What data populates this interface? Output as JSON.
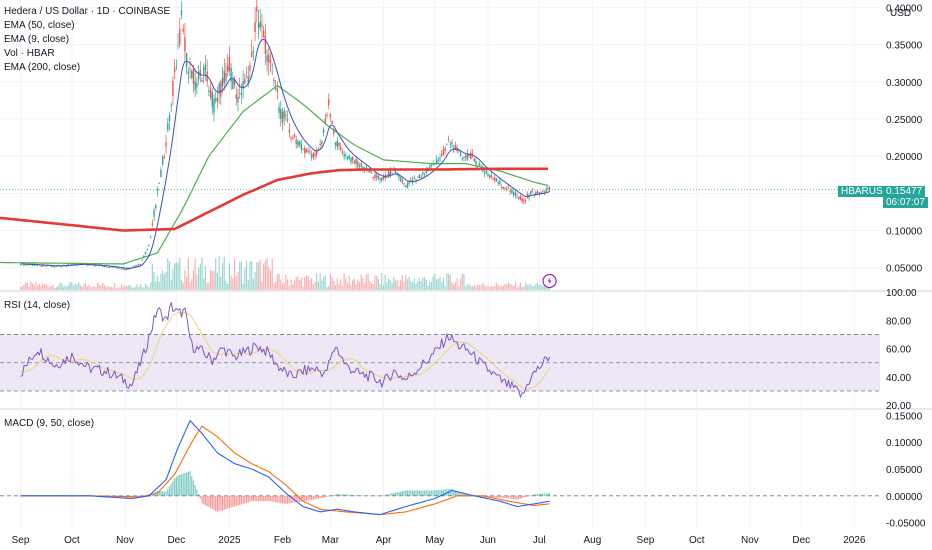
{
  "header": {
    "title": "Hedera / US Dollar · 1D · COINBASE",
    "currency": "USD",
    "indicators": [
      "EMA (50, close)",
      "EMA (9, close)",
      "Vol · HBAR",
      "EMA (200, close)"
    ]
  },
  "symbol_tag": {
    "symbol": "HBARUSD",
    "price": "0.15477",
    "countdown": "06:07:07"
  },
  "chart_data": [
    {
      "type": "candlestick",
      "title": "Hedera / US Dollar · 1D · COINBASE",
      "ylim": [
        0.02,
        0.41
      ],
      "y_ticks": [
        "0.40000",
        "0.35000",
        "0.30000",
        "0.25000",
        "0.20000",
        "0.15000",
        "0.10000",
        "0.05000"
      ],
      "y_tick_values": [
        0.4,
        0.35,
        0.3,
        0.25,
        0.2,
        0.15,
        0.1,
        0.05
      ],
      "x_labels": [
        "Sep",
        "Oct",
        "Nov",
        "Dec",
        "2025",
        "Feb",
        "Mar",
        "Apr",
        "May",
        "Jun",
        "Jul",
        "Aug",
        "Sep",
        "Oct",
        "Nov",
        "Dec",
        "2026"
      ],
      "x_label_days": [
        0,
        30,
        61,
        91,
        122,
        153,
        181,
        212,
        242,
        273,
        303,
        334,
        365,
        395,
        426,
        456,
        487
      ],
      "x_range_days": [
        -12,
        502
      ],
      "last_day": 309,
      "price_keypoints": [
        [
          0,
          0.055
        ],
        [
          20,
          0.052
        ],
        [
          35,
          0.055
        ],
        [
          50,
          0.052
        ],
        [
          62,
          0.048
        ],
        [
          70,
          0.055
        ],
        [
          75,
          0.08
        ],
        [
          80,
          0.15
        ],
        [
          87,
          0.25
        ],
        [
          91,
          0.33
        ],
        [
          94,
          0.38
        ],
        [
          97,
          0.33
        ],
        [
          102,
          0.3
        ],
        [
          108,
          0.31
        ],
        [
          113,
          0.27
        ],
        [
          117,
          0.29
        ],
        [
          122,
          0.32
        ],
        [
          127,
          0.28
        ],
        [
          132,
          0.3
        ],
        [
          135,
          0.33
        ],
        [
          138,
          0.39
        ],
        [
          142,
          0.36
        ],
        [
          147,
          0.31
        ],
        [
          152,
          0.26
        ],
        [
          158,
          0.23
        ],
        [
          165,
          0.21
        ],
        [
          172,
          0.2
        ],
        [
          176,
          0.22
        ],
        [
          180,
          0.27
        ],
        [
          184,
          0.22
        ],
        [
          190,
          0.2
        ],
        [
          197,
          0.19
        ],
        [
          203,
          0.18
        ],
        [
          208,
          0.17
        ],
        [
          212,
          0.17
        ],
        [
          218,
          0.18
        ],
        [
          225,
          0.16
        ],
        [
          232,
          0.17
        ],
        [
          238,
          0.18
        ],
        [
          242,
          0.19
        ],
        [
          246,
          0.2
        ],
        [
          250,
          0.22
        ],
        [
          254,
          0.21
        ],
        [
          258,
          0.2
        ],
        [
          264,
          0.2
        ],
        [
          270,
          0.18
        ],
        [
          276,
          0.17
        ],
        [
          282,
          0.16
        ],
        [
          288,
          0.15
        ],
        [
          294,
          0.14
        ],
        [
          298,
          0.15
        ],
        [
          303,
          0.15
        ],
        [
          309,
          0.155
        ]
      ],
      "ema200": [
        [
          -12,
          0.117
        ],
        [
          60,
          0.1
        ],
        [
          90,
          0.102
        ],
        [
          110,
          0.125
        ],
        [
          130,
          0.148
        ],
        [
          150,
          0.168
        ],
        [
          170,
          0.177
        ],
        [
          185,
          0.181
        ],
        [
          200,
          0.182
        ],
        [
          240,
          0.182
        ],
        [
          280,
          0.183
        ],
        [
          309,
          0.183
        ]
      ],
      "ema50_keypoints": [
        [
          -12,
          0.057
        ],
        [
          60,
          0.055
        ],
        [
          80,
          0.07
        ],
        [
          95,
          0.13
        ],
        [
          110,
          0.2
        ],
        [
          130,
          0.26
        ],
        [
          150,
          0.295
        ],
        [
          165,
          0.27
        ],
        [
          180,
          0.24
        ],
        [
          195,
          0.215
        ],
        [
          212,
          0.195
        ],
        [
          240,
          0.19
        ],
        [
          260,
          0.19
        ],
        [
          280,
          0.18
        ],
        [
          300,
          0.165
        ],
        [
          309,
          0.16
        ]
      ],
      "current_price": 0.15477
    },
    {
      "type": "line",
      "title": "RSI (14, close)",
      "ylim": [
        18,
        100
      ],
      "y_ticks": [
        "100.00",
        "80.00",
        "60.00",
        "40.00",
        "20.00"
      ],
      "y_tick_values": [
        100,
        80,
        60,
        40,
        20
      ],
      "band": [
        30,
        70
      ],
      "midline": 50,
      "rsi_keypoints": [
        [
          -12,
          45
        ],
        [
          0,
          42
        ],
        [
          10,
          60
        ],
        [
          20,
          48
        ],
        [
          30,
          55
        ],
        [
          40,
          46
        ],
        [
          50,
          44
        ],
        [
          60,
          38
        ],
        [
          65,
          34
        ],
        [
          72,
          56
        ],
        [
          80,
          88
        ],
        [
          85,
          80
        ],
        [
          88,
          90
        ],
        [
          92,
          85
        ],
        [
          96,
          86
        ],
        [
          100,
          62
        ],
        [
          106,
          58
        ],
        [
          112,
          52
        ],
        [
          118,
          60
        ],
        [
          125,
          54
        ],
        [
          132,
          58
        ],
        [
          138,
          62
        ],
        [
          145,
          57
        ],
        [
          150,
          48
        ],
        [
          158,
          40
        ],
        [
          165,
          44
        ],
        [
          172,
          46
        ],
        [
          178,
          42
        ],
        [
          184,
          62
        ],
        [
          190,
          48
        ],
        [
          198,
          42
        ],
        [
          205,
          40
        ],
        [
          212,
          36
        ],
        [
          218,
          44
        ],
        [
          225,
          38
        ],
        [
          232,
          46
        ],
        [
          238,
          52
        ],
        [
          244,
          60
        ],
        [
          250,
          69
        ],
        [
          256,
          62
        ],
        [
          262,
          58
        ],
        [
          270,
          48
        ],
        [
          276,
          42
        ],
        [
          282,
          36
        ],
        [
          288,
          32
        ],
        [
          293,
          26
        ],
        [
          298,
          40
        ],
        [
          304,
          48
        ],
        [
          309,
          55
        ]
      ]
    },
    {
      "type": "line",
      "title": "MACD (9, 50, close)",
      "ylim": [
        -0.06,
        0.16
      ],
      "y_ticks": [
        "0.15000",
        "0.10000",
        "0.05000",
        "0.00000",
        "-0.05000"
      ],
      "y_tick_values": [
        0.15,
        0.1,
        0.05,
        0.0,
        -0.05
      ],
      "macd_keypoints": [
        [
          -12,
          0.0
        ],
        [
          40,
          0.0
        ],
        [
          65,
          -0.005
        ],
        [
          75,
          0.0
        ],
        [
          85,
          0.03
        ],
        [
          92,
          0.09
        ],
        [
          99,
          0.14
        ],
        [
          105,
          0.12
        ],
        [
          115,
          0.08
        ],
        [
          125,
          0.06
        ],
        [
          135,
          0.05
        ],
        [
          145,
          0.035
        ],
        [
          155,
          0.005
        ],
        [
          165,
          -0.02
        ],
        [
          175,
          -0.03
        ],
        [
          185,
          -0.025
        ],
        [
          195,
          -0.03
        ],
        [
          210,
          -0.035
        ],
        [
          225,
          -0.02
        ],
        [
          242,
          -0.005
        ],
        [
          252,
          0.01
        ],
        [
          265,
          0.0
        ],
        [
          280,
          -0.01
        ],
        [
          290,
          -0.02
        ],
        [
          300,
          -0.015
        ],
        [
          309,
          -0.01
        ]
      ],
      "signal_keypoints": [
        [
          -12,
          0.0
        ],
        [
          40,
          0.0
        ],
        [
          70,
          -0.002
        ],
        [
          80,
          0.005
        ],
        [
          90,
          0.04
        ],
        [
          100,
          0.1
        ],
        [
          106,
          0.13
        ],
        [
          115,
          0.11
        ],
        [
          125,
          0.08
        ],
        [
          135,
          0.06
        ],
        [
          145,
          0.045
        ],
        [
          155,
          0.02
        ],
        [
          165,
          -0.01
        ],
        [
          175,
          -0.025
        ],
        [
          190,
          -0.03
        ],
        [
          210,
          -0.035
        ],
        [
          225,
          -0.03
        ],
        [
          242,
          -0.015
        ],
        [
          255,
          0.0
        ],
        [
          270,
          0.0
        ],
        [
          285,
          -0.01
        ],
        [
          300,
          -0.018
        ],
        [
          309,
          -0.015
        ]
      ]
    }
  ],
  "colors": {
    "up": "#26a69a",
    "down": "#ef5350",
    "ema200": "#e53935",
    "ema50": "#4caf50",
    "ema9": "#3f51b5",
    "rsi": "#7e57c2",
    "rsi_ma": "#f2e8a6",
    "rsi_band": "#ede7f6",
    "macd": "#2962ff",
    "signal": "#ff6d00",
    "price_tag": "#26a69a",
    "grid": "#f0f3fa"
  },
  "icons": {
    "flash": "flash-icon"
  }
}
